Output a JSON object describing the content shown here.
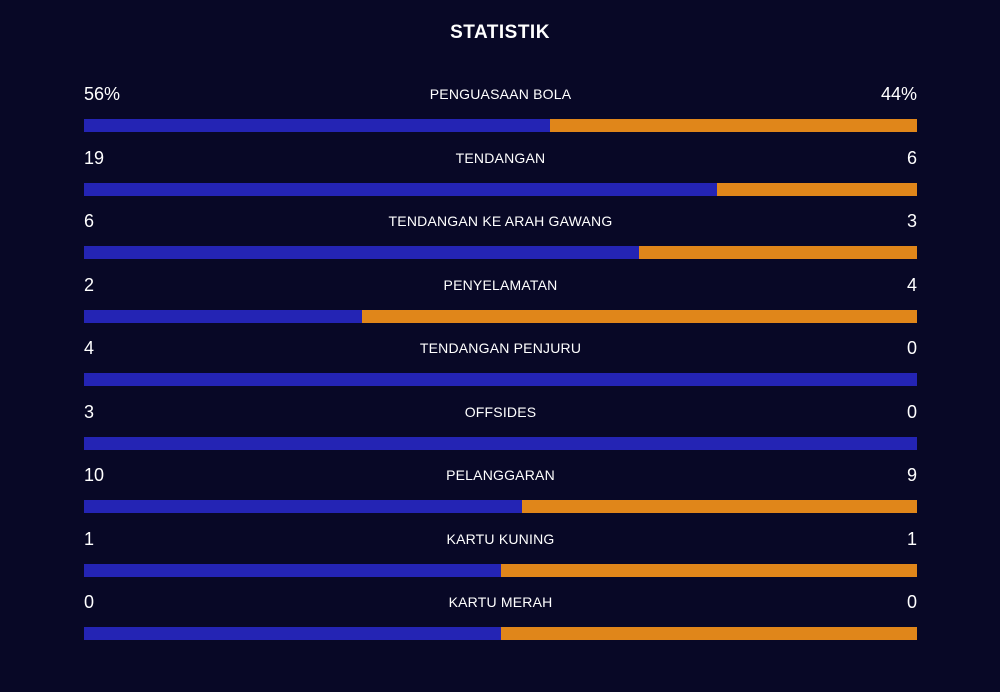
{
  "header": {
    "title": "STATISTIK"
  },
  "colors": {
    "background": "#080826",
    "home": "#2424b4",
    "away": "#e0861a"
  },
  "stats": [
    {
      "label": "PENGUASAAN BOLA",
      "home": "56%",
      "away": "44%",
      "home_share": 0.56
    },
    {
      "label": "TENDANGAN",
      "home": "19",
      "away": "6",
      "home_share": 0.76
    },
    {
      "label": "TENDANGAN KE ARAH GAWANG",
      "home": "6",
      "away": "3",
      "home_share": 0.6667
    },
    {
      "label": "PENYELAMATAN",
      "home": "2",
      "away": "4",
      "home_share": 0.3333
    },
    {
      "label": "TENDANGAN PENJURU",
      "home": "4",
      "away": "0",
      "home_share": 1.0
    },
    {
      "label": "OFFSIDES",
      "home": "3",
      "away": "0",
      "home_share": 1.0
    },
    {
      "label": "PELANGGARAN",
      "home": "10",
      "away": "9",
      "home_share": 0.5263
    },
    {
      "label": "KARTU KUNING",
      "home": "1",
      "away": "1",
      "home_share": 0.5
    },
    {
      "label": "KARTU MERAH",
      "home": "0",
      "away": "0",
      "home_share": 0.5
    }
  ]
}
